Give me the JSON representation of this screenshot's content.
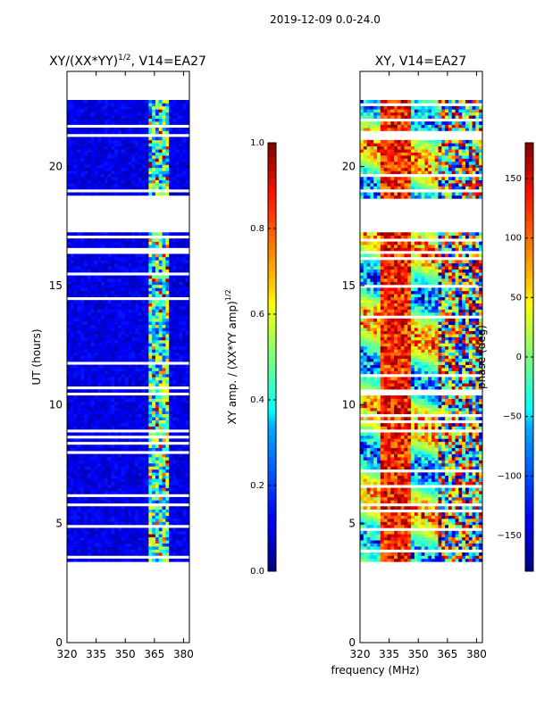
{
  "figure": {
    "suptitle": "2019-12-09 0.0-24.0",
    "xlabel_shared": "frequency (MHz)"
  },
  "chart_data": [
    {
      "type": "heatmap",
      "title_base": "XY/(XX*YY)",
      "title_exponent": "1/2",
      "title_suffix": ", V14=EA27",
      "xlabel": "",
      "ylabel": "UT (hours)",
      "xlim": [
        320,
        383
      ],
      "ylim": [
        0,
        24
      ],
      "xticks": [
        320,
        335,
        350,
        365,
        380
      ],
      "yticks": [
        0,
        5,
        10,
        15,
        20
      ],
      "colormap": "jet",
      "colorbar": {
        "label_base": "XY amp. / (XX*YY amp)",
        "label_exponent": "1/2",
        "range": [
          0.0,
          1.0
        ],
        "ticks": [
          "0.0",
          "0.2",
          "0.4",
          "0.6",
          "0.8",
          "1.0"
        ]
      },
      "data_extent_hours": [
        3.4,
        22.8
      ],
      "band_mhz": [
        362,
        372
      ]
    },
    {
      "type": "heatmap",
      "title": "XY, V14=EA27",
      "xlabel": "",
      "ylabel": "",
      "xlim": [
        320,
        383
      ],
      "ylim": [
        0,
        24
      ],
      "xticks": [
        320,
        335,
        350,
        365,
        380
      ],
      "yticks": [
        0,
        5,
        10,
        15,
        20
      ],
      "colormap": "jet",
      "colorbar": {
        "label": "phase (deg)",
        "range": [
          -180,
          180
        ],
        "ticks": [
          "-150",
          "-100",
          "-50",
          "0",
          "50",
          "100",
          "150"
        ]
      },
      "data_extent_hours": [
        3.4,
        22.8
      ],
      "band_mhz": [
        360,
        382
      ]
    }
  ],
  "gaps_hours": [
    [
      17.2,
      18.6
    ],
    [
      8.8,
      9.0
    ],
    [
      18.9,
      19.1
    ]
  ]
}
